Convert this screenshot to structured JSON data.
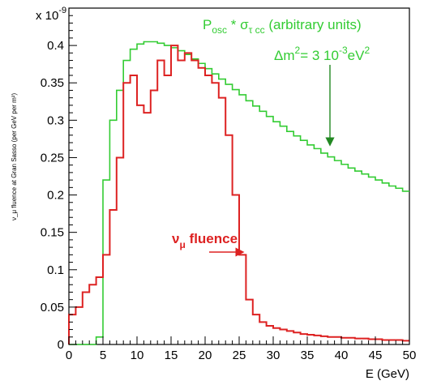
{
  "chart_data": {
    "type": "line",
    "xlabel": "E (GeV)",
    "ylabel": "ν_μ fluence at Gran Sasso (per GeV per m²)",
    "y_multiplier": "x 10",
    "y_multiplier_exp": "-9",
    "xlim": [
      0,
      50
    ],
    "ylim": [
      0,
      0.45
    ],
    "x_ticks": [
      "0",
      "5",
      "10",
      "15",
      "20",
      "25",
      "30",
      "35",
      "40",
      "45",
      "50"
    ],
    "y_ticks": [
      "0",
      "0.05",
      "0.1",
      "0.15",
      "0.2",
      "0.25",
      "0.3",
      "0.35",
      "0.4"
    ],
    "grid": false,
    "bin_width": 1,
    "series": [
      {
        "name": "νμ fluence",
        "color": "#dd2222",
        "values": [
          0.04,
          0.05,
          0.07,
          0.08,
          0.09,
          0.12,
          0.18,
          0.25,
          0.35,
          0.36,
          0.32,
          0.31,
          0.34,
          0.38,
          0.36,
          0.4,
          0.38,
          0.39,
          0.38,
          0.37,
          0.36,
          0.35,
          0.33,
          0.28,
          0.2,
          0.12,
          0.06,
          0.04,
          0.03,
          0.025,
          0.022,
          0.02,
          0.018,
          0.016,
          0.014,
          0.013,
          0.012,
          0.011,
          0.01,
          0.01,
          0.009,
          0.009,
          0.008,
          0.008,
          0.007,
          0.007,
          0.006,
          0.006,
          0.006,
          0.005
        ]
      },
      {
        "name": "Posc * σ τ cc (arbitrary units)",
        "color": "#33cc33",
        "values": [
          0,
          0,
          0,
          0,
          0.01,
          0.22,
          0.3,
          0.34,
          0.38,
          0.395,
          0.402,
          0.405,
          0.405,
          0.403,
          0.4,
          0.397,
          0.393,
          0.388,
          0.382,
          0.376,
          0.369,
          0.362,
          0.355,
          0.348,
          0.341,
          0.334,
          0.326,
          0.319,
          0.312,
          0.305,
          0.298,
          0.292,
          0.285,
          0.279,
          0.273,
          0.267,
          0.262,
          0.256,
          0.251,
          0.246,
          0.241,
          0.236,
          0.232,
          0.228,
          0.224,
          0.22,
          0.216,
          0.212,
          0.209,
          0.205
        ]
      }
    ],
    "annotations": {
      "green_title_main": "P",
      "green_title_sub": "osc",
      "green_title_mid": " * σ",
      "green_title_sub2": "τ cc",
      "green_title_end": " (arbitrary units)",
      "dm_text": "Δm",
      "dm_sup": "2",
      "dm_mid": "= 3 10",
      "dm_exp": "-3",
      "dm_unit": "eV",
      "dm_unit_sup": "2",
      "red_label_main": "ν",
      "red_label_sub": "μ",
      "red_label_end": " fluence"
    }
  }
}
